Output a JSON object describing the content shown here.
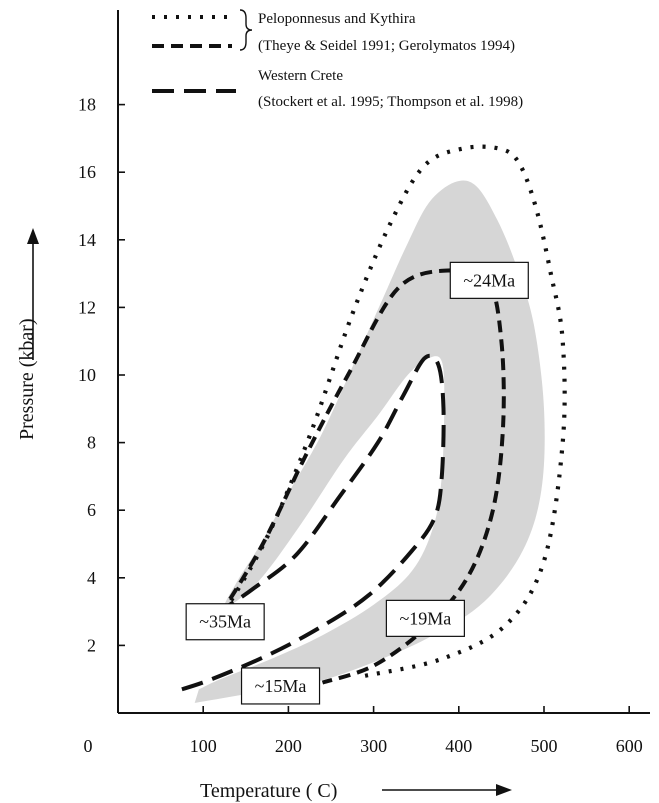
{
  "chart_data": {
    "type": "line",
    "title": "",
    "xlabel": "Temperature ( C)",
    "ylabel": "Pressure (kbar)",
    "xlim": [
      0,
      650
    ],
    "ylim": [
      0,
      20
    ],
    "x_ticks": [
      "0",
      "100",
      "200",
      "300",
      "400",
      "500",
      "600"
    ],
    "x_tick_values": [
      0,
      100,
      200,
      300,
      400,
      500,
      600
    ],
    "y_ticks": [
      "2",
      "4",
      "6",
      "8",
      "10",
      "12",
      "14",
      "16",
      "18"
    ],
    "y_tick_values": [
      2,
      4,
      6,
      8,
      10,
      12,
      14,
      16,
      18
    ],
    "grid": false,
    "legend_position": "top-left",
    "legend": [
      {
        "style": "dotted",
        "label": "Peloponnesus and Kythira"
      },
      {
        "style": "dashed",
        "label": "(Theye & Seidel 1991; Gerolymatos 1994)"
      },
      {
        "style": "long-dashed",
        "label": "Western Crete"
      },
      {
        "style": "none",
        "label": "(Stockert et al. 1995; Thompson et al. 1998)"
      }
    ],
    "series": [
      {
        "style": "dotted",
        "points": [
          [
            290,
            1.1
          ],
          [
            380,
            1.6
          ],
          [
            455,
            2.6
          ],
          [
            500,
            4.5
          ],
          [
            522,
            8
          ],
          [
            522,
            11
          ],
          [
            508,
            13
          ],
          [
            490,
            15
          ],
          [
            470,
            16.3
          ],
          [
            447,
            16.7
          ],
          [
            405,
            16.7
          ],
          [
            360,
            16.2
          ],
          [
            320,
            14.5
          ],
          [
            275,
            11.8
          ],
          [
            225,
            8.2
          ],
          [
            175,
            5.2
          ],
          [
            125,
            3
          ]
        ]
      },
      {
        "style": "dashed",
        "points": [
          [
            120,
            2.9
          ],
          [
            170,
            5
          ],
          [
            220,
            7.6
          ],
          [
            270,
            10
          ],
          [
            330,
            12.6
          ],
          [
            395,
            13.1
          ],
          [
            435,
            12.8
          ],
          [
            450,
            11
          ],
          [
            452,
            8.5
          ],
          [
            440,
            6
          ],
          [
            410,
            4
          ],
          [
            360,
            2.5
          ],
          [
            300,
            1.4
          ],
          [
            240,
            0.9
          ]
        ]
      },
      {
        "style": "long-dashed",
        "points": [
          [
            75,
            0.7
          ],
          [
            110,
            1
          ],
          [
            175,
            1.7
          ],
          [
            235,
            2.5
          ],
          [
            295,
            3.5
          ],
          [
            345,
            4.8
          ],
          [
            372,
            5.8
          ],
          [
            380,
            7
          ],
          [
            382,
            9
          ],
          [
            376,
            10.3
          ],
          [
            360,
            10.5
          ],
          [
            335,
            9.4
          ],
          [
            305,
            8
          ],
          [
            260,
            6.4
          ],
          [
            210,
            4.7
          ],
          [
            160,
            3.7
          ],
          [
            125,
            3.1
          ]
        ]
      }
    ],
    "shaded_region": {
      "color": "#d6d6d6",
      "points": [
        [
          90,
          0.3
        ],
        [
          160,
          0.6
        ],
        [
          230,
          0.9
        ],
        [
          300,
          1.5
        ],
        [
          370,
          2.3
        ],
        [
          430,
          3.3
        ],
        [
          475,
          4.8
        ],
        [
          497,
          6.6
        ],
        [
          500,
          9
        ],
        [
          488,
          11.5
        ],
        [
          468,
          13.2
        ],
        [
          445,
          14.6
        ],
        [
          420,
          15.6
        ],
        [
          395,
          15.7
        ],
        [
          365,
          15.1
        ],
        [
          340,
          13.9
        ],
        [
          315,
          12.5
        ],
        [
          285,
          10.8
        ],
        [
          240,
          8.3
        ],
        [
          200,
          6.5
        ],
        [
          165,
          4.9
        ],
        [
          140,
          3.9
        ],
        [
          125,
          3.1
        ],
        [
          165,
          3.9
        ],
        [
          215,
          5.6
        ],
        [
          265,
          7.5
        ],
        [
          305,
          8.8
        ],
        [
          340,
          10
        ],
        [
          365,
          10.5
        ],
        [
          380,
          10.4
        ],
        [
          383,
          9.2
        ],
        [
          380,
          7
        ],
        [
          370,
          5.5
        ],
        [
          345,
          4.2
        ],
        [
          300,
          3.2
        ],
        [
          240,
          2.3
        ],
        [
          180,
          1.6
        ],
        [
          120,
          1
        ],
        [
          95,
          0.7
        ]
      ]
    },
    "annotations": [
      {
        "text": "~24Ma",
        "x": 390,
        "y": 12.8
      },
      {
        "text": "~35Ma",
        "x": 80,
        "y": 2.7
      },
      {
        "text": "~19Ma",
        "x": 315,
        "y": 2.8
      },
      {
        "text": "~15Ma",
        "x": 145,
        "y": 0.8
      }
    ]
  }
}
